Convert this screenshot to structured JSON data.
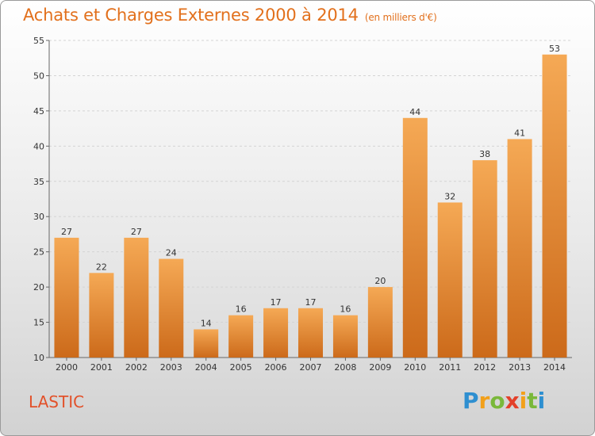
{
  "header": {
    "title": "Achats et Charges Externes 2000 à 2014",
    "unit": "(en milliers d'€)"
  },
  "footer": {
    "city": "LASTIC",
    "logo": "Proxiti"
  },
  "colors": {
    "title": "#e2701c",
    "bar_light": "#f5a955",
    "bar_dark": "#cc6a1a",
    "city": "#e2512a"
  },
  "chart_data": {
    "type": "bar",
    "categories": [
      "2000",
      "2001",
      "2002",
      "2003",
      "2004",
      "2005",
      "2006",
      "2007",
      "2008",
      "2009",
      "2010",
      "2011",
      "2012",
      "2013",
      "2014"
    ],
    "values": [
      27,
      22,
      27,
      24,
      14,
      16,
      17,
      17,
      16,
      20,
      44,
      32,
      38,
      41,
      53
    ],
    "ylim": [
      10,
      55
    ],
    "yticks": [
      10,
      15,
      20,
      25,
      30,
      35,
      40,
      45,
      50,
      55
    ],
    "grid": true,
    "data_labels": true
  }
}
